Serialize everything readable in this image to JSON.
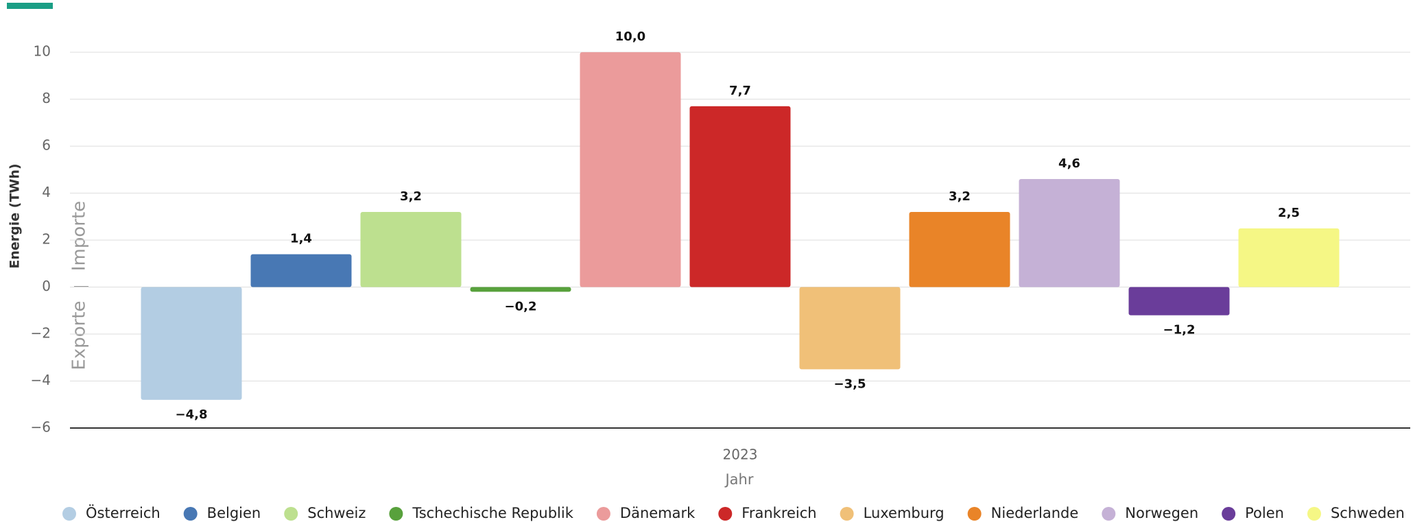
{
  "chart_data": {
    "type": "bar",
    "x_label": "Jahr",
    "y_label": "Energie (TWh)",
    "annotations": [
      "Importe",
      "Exporte"
    ],
    "categories": [
      "2023"
    ],
    "ylim": [
      -6,
      10.5
    ],
    "yticks": [
      {
        "value": -6,
        "label": "−6"
      },
      {
        "value": -4,
        "label": "−4"
      },
      {
        "value": -2,
        "label": "−2"
      },
      0,
      2,
      4,
      6,
      8,
      10
    ],
    "grid": true,
    "legend": "bottom",
    "series": [
      {
        "name": "Österreich",
        "color": "#b3cde3",
        "values": [
          -4.8
        ],
        "value_labels": [
          "−4,8"
        ]
      },
      {
        "name": "Belgien",
        "color": "#4878b4",
        "values": [
          1.4
        ],
        "value_labels": [
          "1,4"
        ]
      },
      {
        "name": "Schweiz",
        "color": "#bde08f",
        "values": [
          3.2
        ],
        "value_labels": [
          "3,2"
        ]
      },
      {
        "name": "Tschechische Republik",
        "color": "#58a13c",
        "values": [
          -0.2
        ],
        "value_labels": [
          "−0,2"
        ]
      },
      {
        "name": "Dänemark",
        "color": "#eb9b9b",
        "values": [
          10.0
        ],
        "value_labels": [
          "10,0"
        ]
      },
      {
        "name": "Frankreich",
        "color": "#cc2828",
        "values": [
          7.7
        ],
        "value_labels": [
          "7,7"
        ]
      },
      {
        "name": "Luxemburg",
        "color": "#f0c078",
        "values": [
          -3.5
        ],
        "value_labels": [
          "−3,5"
        ]
      },
      {
        "name": "Niederlande",
        "color": "#e98428",
        "values": [
          3.2
        ],
        "value_labels": [
          "3,2"
        ]
      },
      {
        "name": "Norwegen",
        "color": "#c5b1d6",
        "values": [
          4.6
        ],
        "value_labels": [
          "4,6"
        ]
      },
      {
        "name": "Polen",
        "color": "#6a3d9a",
        "values": [
          -1.2
        ],
        "value_labels": [
          "−1,2"
        ]
      },
      {
        "name": "Schweden",
        "color": "#f5f785",
        "values": [
          2.5
        ],
        "value_labels": [
          "2,5"
        ]
      }
    ]
  }
}
